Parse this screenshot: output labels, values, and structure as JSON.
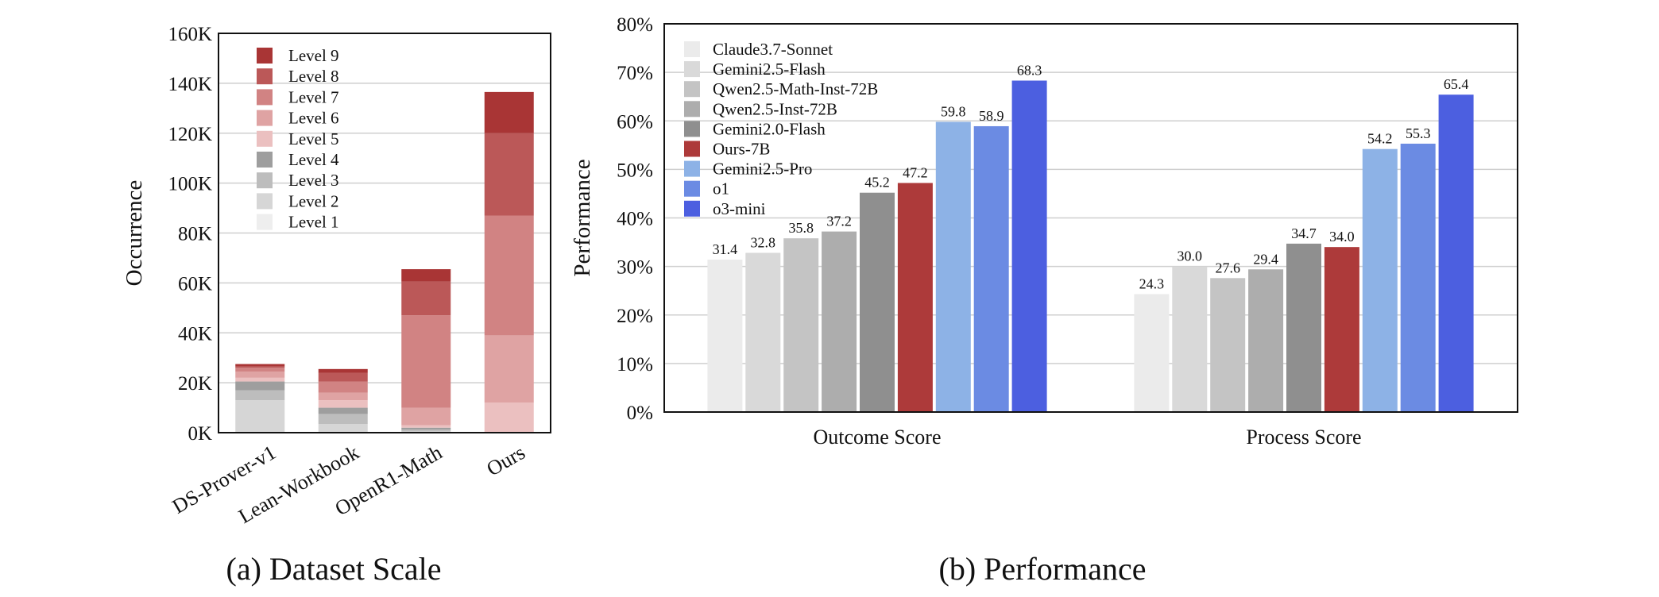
{
  "chart_data": [
    {
      "type": "bar",
      "stacked": true,
      "caption": "(a) Dataset Scale",
      "xlabel": "",
      "ylabel": "Occurrence",
      "ylim": [
        0,
        160000
      ],
      "yticks": [
        0,
        20000,
        40000,
        60000,
        80000,
        100000,
        120000,
        140000,
        160000
      ],
      "ytick_labels": [
        "0K",
        "20K",
        "40K",
        "60K",
        "80K",
        "100K",
        "120K",
        "140K",
        "160K"
      ],
      "categories": [
        "DS-Prover-v1",
        "Lean-Workbook",
        "OpenR1-Math",
        "Ours"
      ],
      "grid": true,
      "legend_position": "top-left",
      "series": [
        {
          "name": "Level 1",
          "color": "#eeeeee",
          "values": [
            0,
            0,
            0,
            0
          ]
        },
        {
          "name": "Level 2",
          "color": "#d6d6d6",
          "values": [
            13000,
            3500,
            500,
            0
          ]
        },
        {
          "name": "Level 3",
          "color": "#bdbdbd",
          "values": [
            4000,
            4000,
            700,
            0
          ]
        },
        {
          "name": "Level 4",
          "color": "#9e9e9e",
          "values": [
            3500,
            2500,
            800,
            0
          ]
        },
        {
          "name": "Level 5",
          "color": "#ebc0c0",
          "values": [
            1500,
            3000,
            1000,
            12000
          ]
        },
        {
          "name": "Level 6",
          "color": "#dfa3a3",
          "values": [
            2500,
            3000,
            7000,
            27000
          ]
        },
        {
          "name": "Level 7",
          "color": "#d18383",
          "values": [
            1500,
            4500,
            37000,
            48000
          ]
        },
        {
          "name": "Level 8",
          "color": "#bb5858",
          "values": [
            500,
            3500,
            13500,
            33000
          ]
        },
        {
          "name": "Level 9",
          "color": "#a93535",
          "values": [
            1000,
            1500,
            5000,
            16500
          ]
        }
      ]
    },
    {
      "type": "bar",
      "caption": "(b) Performance",
      "xlabel": "",
      "ylabel": "Performance",
      "ylim": [
        0,
        80
      ],
      "yticks": [
        0,
        10,
        20,
        30,
        40,
        50,
        60,
        70,
        80
      ],
      "ytick_labels": [
        "0%",
        "10%",
        "20%",
        "30%",
        "40%",
        "50%",
        "60%",
        "70%",
        "80%"
      ],
      "categories": [
        "Outcome Score",
        "Process Score"
      ],
      "grid": true,
      "legend_position": "top-left",
      "series": [
        {
          "name": "Claude3.7-Sonnet",
          "color": "#ebebeb",
          "values": [
            31.4,
            24.3
          ],
          "labels": [
            "31.4",
            "24.3"
          ]
        },
        {
          "name": "Gemini2.5-Flash",
          "color": "#d9d9d9",
          "values": [
            32.8,
            30.0
          ],
          "labels": [
            "32.8",
            "30.0"
          ]
        },
        {
          "name": "Qwen2.5-Math-Inst-72B",
          "color": "#c4c4c4",
          "values": [
            35.8,
            27.6
          ],
          "labels": [
            "35.8",
            "27.6"
          ]
        },
        {
          "name": "Qwen2.5-Inst-72B",
          "color": "#adadad",
          "values": [
            37.2,
            29.4
          ],
          "labels": [
            "37.2",
            "29.4"
          ]
        },
        {
          "name": "Gemini2.0-Flash",
          "color": "#8f8f8f",
          "values": [
            45.2,
            34.7
          ],
          "labels": [
            "45.2",
            "34.7"
          ]
        },
        {
          "name": "Ours-7B",
          "color": "#ad3a3a",
          "values": [
            47.2,
            34.0
          ],
          "labels": [
            "47.2",
            "34.0"
          ]
        },
        {
          "name": "Gemini2.5-Pro",
          "color": "#8db2e6",
          "values": [
            59.8,
            54.2
          ],
          "labels": [
            "59.8",
            "54.2"
          ]
        },
        {
          "name": "o1",
          "color": "#6b8be3",
          "values": [
            58.9,
            55.3
          ],
          "labels": [
            "58.9",
            "55.3"
          ]
        },
        {
          "name": "o3-mini",
          "color": "#4c5fe0",
          "values": [
            68.3,
            65.4
          ],
          "labels": [
            "68.3",
            "65.4"
          ]
        }
      ]
    }
  ]
}
